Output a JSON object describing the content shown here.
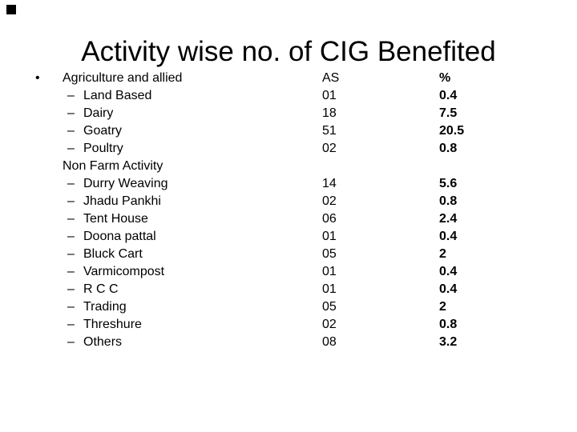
{
  "title": "Activity wise no. of CIG Benefited",
  "columns": {
    "as_header": "AS",
    "pct_header": "%"
  },
  "colors": {
    "background": "#ffffff",
    "text": "#000000"
  },
  "rows": [
    {
      "kind": "top",
      "marker": "•",
      "label": "Agriculture and allied",
      "as": "AS",
      "pct": "%"
    },
    {
      "kind": "sub",
      "marker": "–",
      "label": "Land Based",
      "as": "01",
      "pct": "0.4"
    },
    {
      "kind": "sub",
      "marker": "–",
      "label": "Dairy",
      "as": "18",
      "pct": "7.5"
    },
    {
      "kind": "sub",
      "marker": "–",
      "label": "Goatry",
      "as": "51",
      "pct": "20.5"
    },
    {
      "kind": "sub",
      "marker": "–",
      "label": "Poultry",
      "as": "02",
      "pct": "0.8"
    },
    {
      "kind": "top",
      "marker": "",
      "label": "Non Farm Activity",
      "as": "",
      "pct": ""
    },
    {
      "kind": "sub",
      "marker": "–",
      "label": "Durry Weaving",
      "as": "14",
      "pct": "5.6"
    },
    {
      "kind": "sub",
      "marker": "–",
      "label": "Jhadu Pankhi",
      "as": "02",
      "pct": "0.8"
    },
    {
      "kind": "sub",
      "marker": "–",
      "label": "Tent House",
      "as": "06",
      "pct": "2.4"
    },
    {
      "kind": "sub",
      "marker": "–",
      "label": "Doona pattal",
      "as": "01",
      "pct": "0.4"
    },
    {
      "kind": "sub",
      "marker": "–",
      "label": "Bluck Cart",
      "as": "05",
      "pct": "2"
    },
    {
      "kind": "sub",
      "marker": "–",
      "label": "Varmicompost",
      "as": "01",
      "pct": "0.4"
    },
    {
      "kind": "sub",
      "marker": "–",
      "label": "R C C",
      "as": "01",
      "pct": "0.4"
    },
    {
      "kind": "sub",
      "marker": "–",
      "label": "Trading",
      "as": "05",
      "pct": "2"
    },
    {
      "kind": "sub",
      "marker": "–",
      "label": "Threshure",
      "as": "02",
      "pct": "0.8"
    },
    {
      "kind": "sub",
      "marker": "–",
      "label": "Others",
      "as": "08",
      "pct": "3.2"
    }
  ]
}
